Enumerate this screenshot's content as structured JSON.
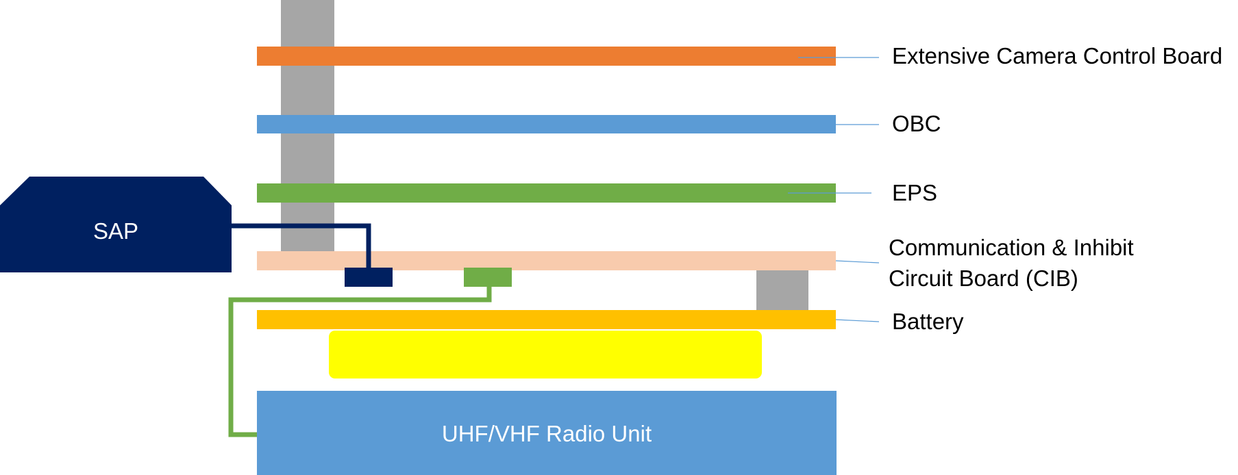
{
  "colors": {
    "camera_board": "#ED7D31",
    "obc": "#5B9BD5",
    "eps": "#70AD47",
    "cib": "#F8CBAD",
    "battery": "#FFC000",
    "battery_cells": "#FFFF00",
    "radio_unit": "#5B9BD5",
    "sap": "#002060",
    "standoff": "#A6A6A6",
    "sap_connector": "#002060",
    "radio_connector": "#70AD47",
    "leader_line": "#5B9BD5"
  },
  "labels": {
    "camera_board": "Extensive Camera Control Board",
    "obc": "OBC",
    "eps": "EPS",
    "cib_line1": "Communication & Inhibit",
    "cib_line2": "Circuit Board (CIB)",
    "battery": "Battery",
    "sap": "SAP",
    "radio_unit": "UHF/VHF Radio Unit"
  }
}
